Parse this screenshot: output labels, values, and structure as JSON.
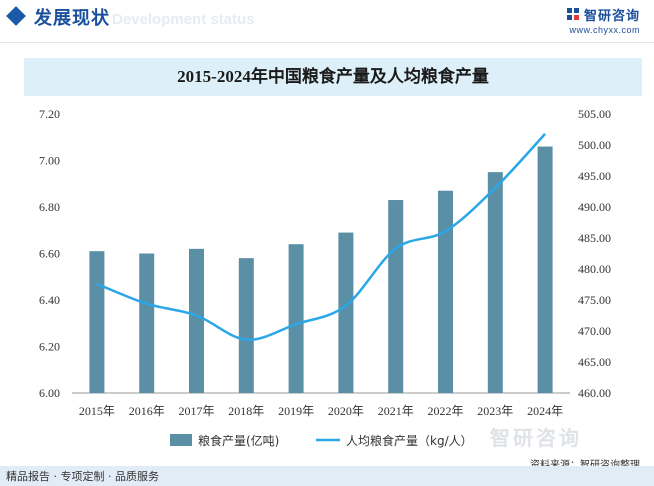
{
  "header": {
    "section_title": "发展现状",
    "section_ghost": "Development status",
    "brand_name": "智研咨询",
    "brand_url": "www.chyxx.com"
  },
  "chart_data": {
    "type": "bar",
    "title": "2015-2024年中国粮食产量及人均粮食产量",
    "categories": [
      "2015年",
      "2016年",
      "2017年",
      "2018年",
      "2019年",
      "2020年",
      "2021年",
      "2022年",
      "2023年",
      "2024年"
    ],
    "series": [
      {
        "name": "粮食产量(亿吨)",
        "type": "bar",
        "axis": "left",
        "color": "#5b8fa6",
        "values": [
          6.61,
          6.6,
          6.62,
          6.58,
          6.64,
          6.69,
          6.83,
          6.87,
          6.95,
          7.06
        ]
      },
      {
        "name": "人均粮食产量（kg/人）",
        "type": "line",
        "axis": "right",
        "color": "#2aa7e6",
        "values": [
          477.6,
          474.4,
          472.5,
          468.6,
          471.1,
          474.1,
          483.3,
          486.1,
          493.1,
          501.8
        ]
      }
    ],
    "ylim_left": [
      6.0,
      7.2
    ],
    "yticks_left": [
      "6.00",
      "6.20",
      "6.40",
      "6.60",
      "6.80",
      "7.00",
      "7.20"
    ],
    "ylim_right": [
      460.0,
      505.0
    ],
    "yticks_right": [
      "460.00",
      "465.00",
      "470.00",
      "475.00",
      "480.00",
      "485.00",
      "490.00",
      "495.00",
      "500.00",
      "505.00"
    ],
    "grid": false,
    "legend": "bottom"
  },
  "footer": {
    "left": "精品报告 · 专项定制 · 品质服务",
    "source": "资料来源：智研咨询整理",
    "watermark": "智研咨询"
  }
}
